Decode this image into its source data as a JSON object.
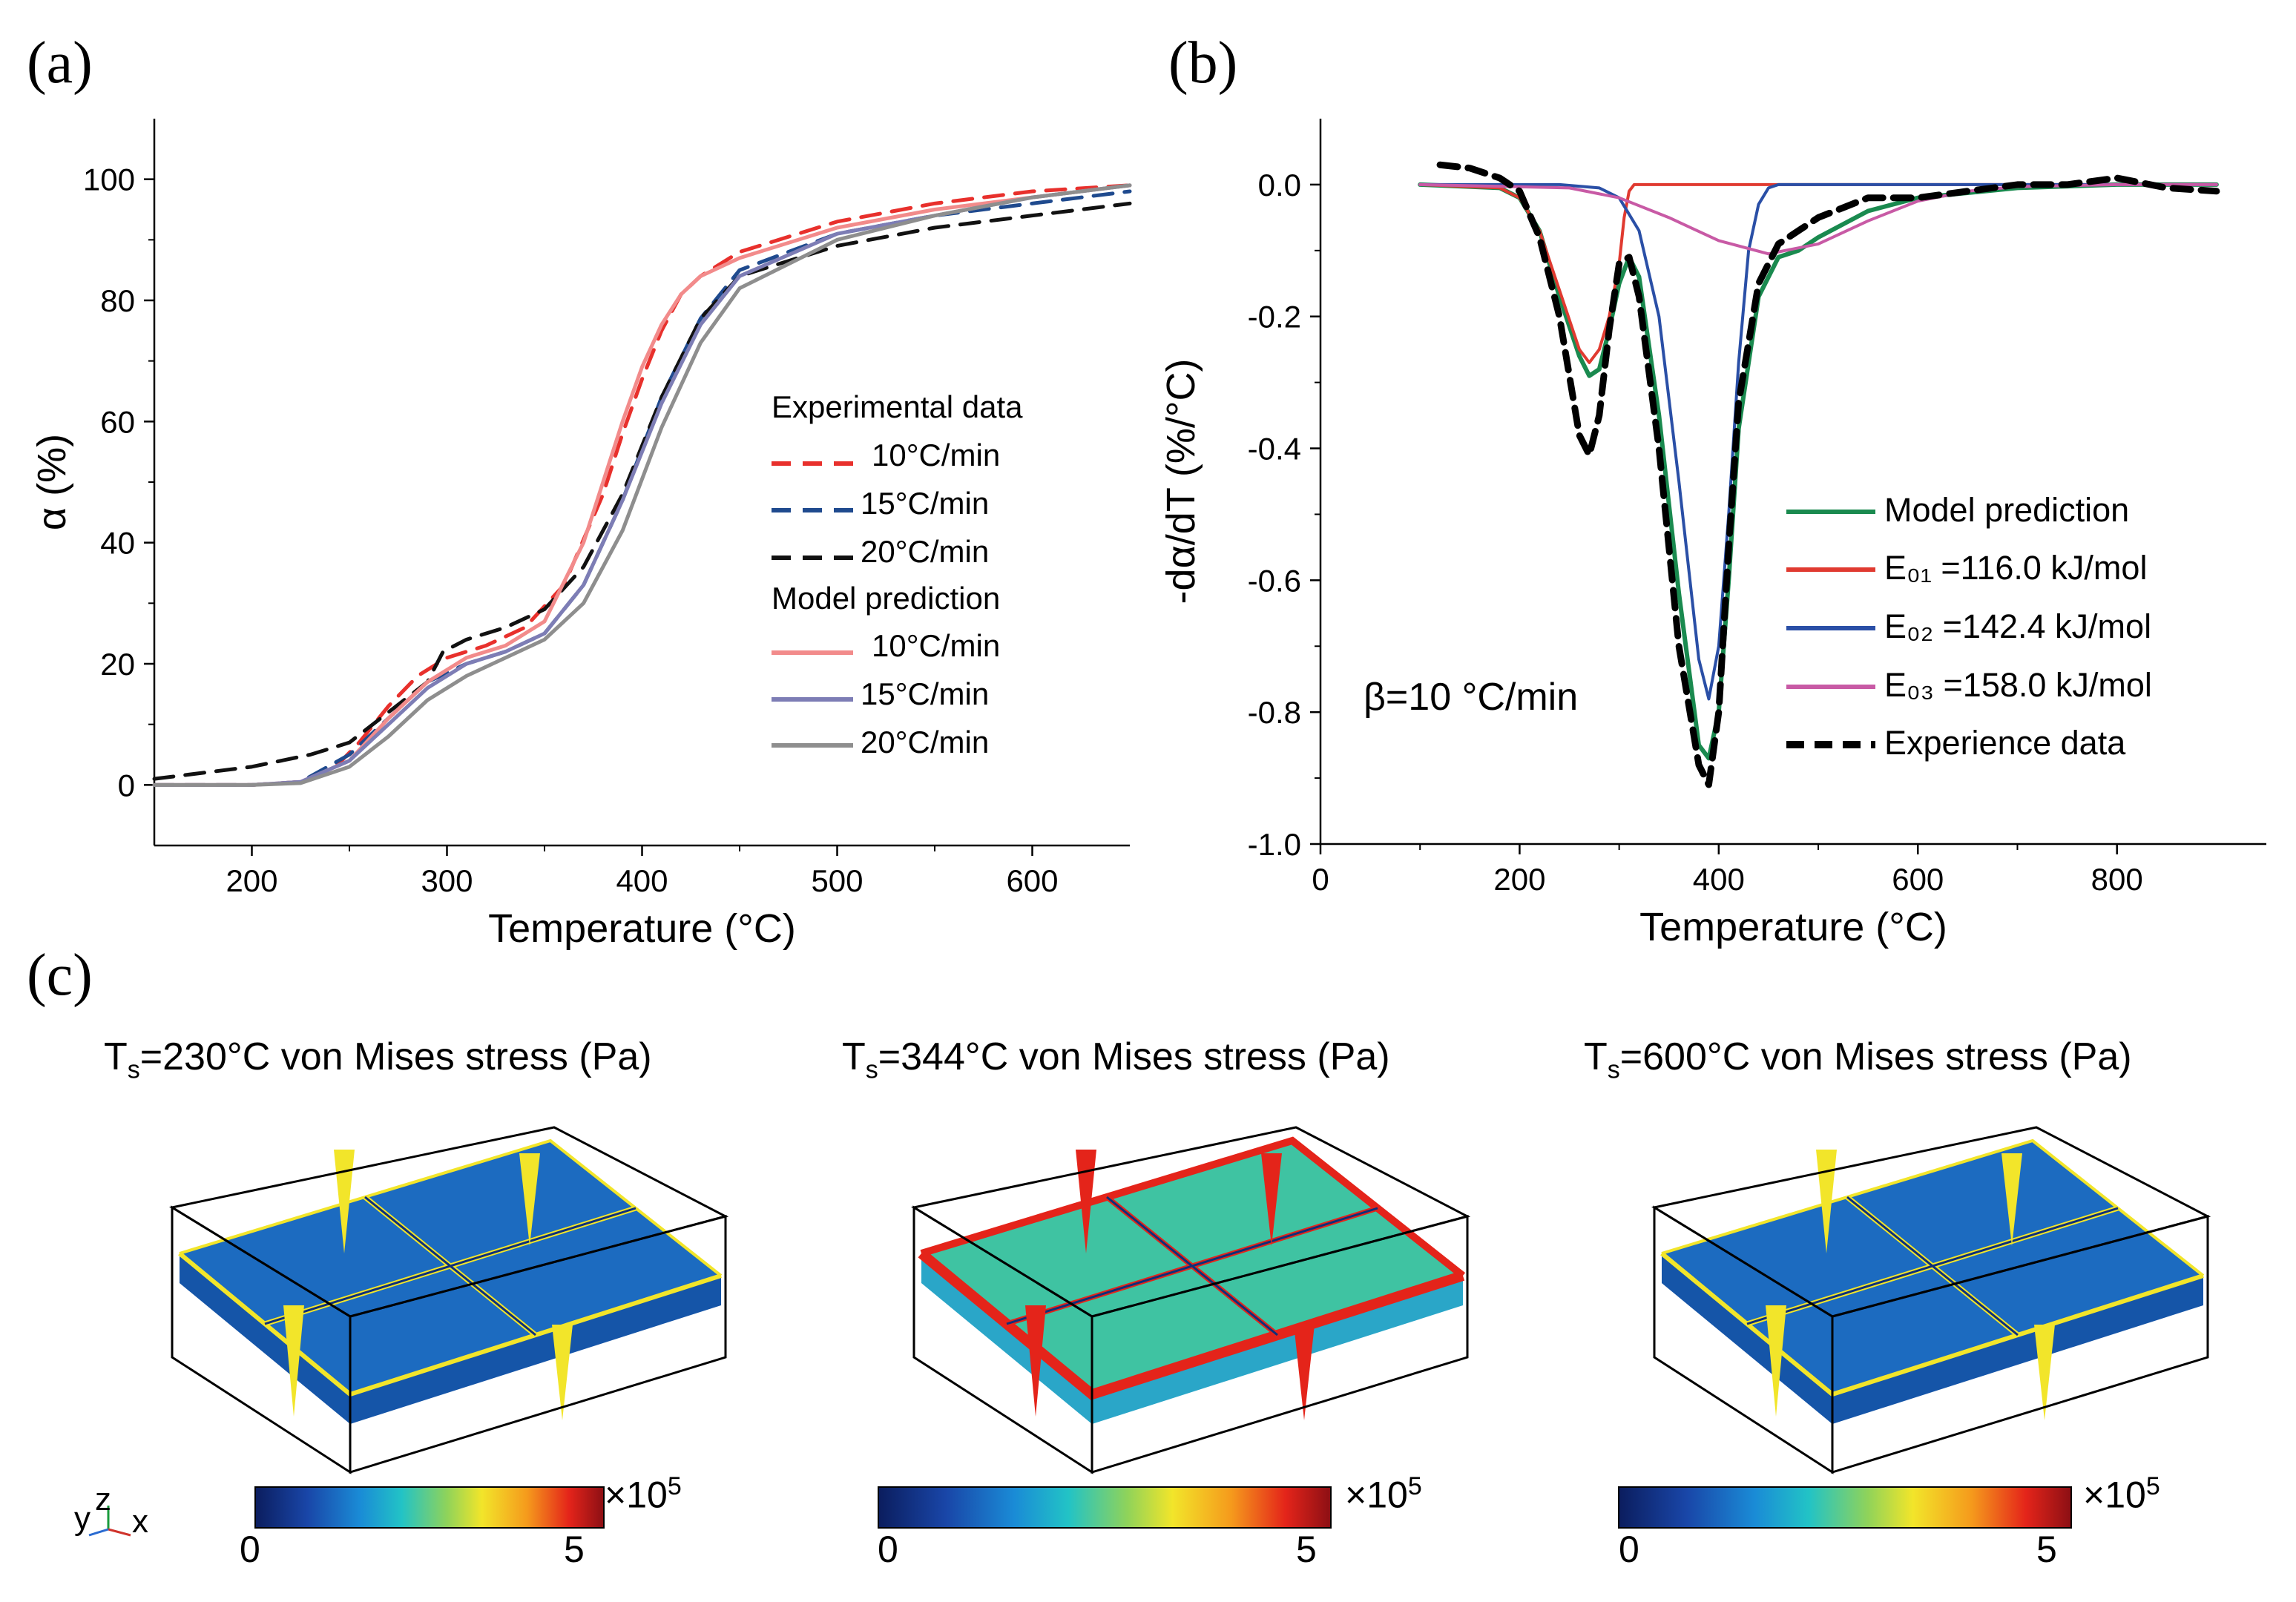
{
  "panels": {
    "a": "(a)",
    "b": "(b)",
    "c": "(c)"
  },
  "colors": {
    "exp_10": "#e8302c",
    "exp_15": "#1f4a8e",
    "exp_20": "#111111",
    "mod_10": "#f28b8b",
    "mod_15": "#7d7db5",
    "mod_20": "#8e8e8e",
    "b_model": "#1a8a4f",
    "b_e01": "#e03a30",
    "b_e02": "#2a4fa6",
    "b_e03": "#c85aa5",
    "b_exp": "#000000"
  },
  "chart_data": [
    {
      "id": "a",
      "type": "line",
      "xlabel": "Temperature (°C)",
      "ylabel": "α (%)",
      "xlim": [
        150,
        650
      ],
      "ylim": [
        -10,
        110
      ],
      "xticks": [
        200,
        300,
        400,
        500,
        600
      ],
      "yticks": [
        0,
        20,
        40,
        60,
        80,
        100
      ],
      "legend": {
        "position": "right",
        "group1_title": "Experimental data",
        "group2_title": "Model prediction",
        "entries": [
          {
            "label": "10°C/min",
            "series": 0
          },
          {
            "label": "15°C/min",
            "series": 1
          },
          {
            "label": "20°C/min",
            "series": 2
          },
          {
            "label": "10°C/min",
            "series": 3
          },
          {
            "label": "15°C/min",
            "series": 4
          },
          {
            "label": "20°C/min",
            "series": 5
          }
        ]
      },
      "series": [
        {
          "name": "Experimental 10°C/min",
          "color_key": "exp_10",
          "dash": true,
          "x": [
            150,
            200,
            225,
            240,
            255,
            270,
            285,
            300,
            320,
            340,
            360,
            380,
            390,
            400,
            410,
            420,
            430,
            450,
            500,
            550,
            600,
            650
          ],
          "y": [
            0,
            0,
            0.5,
            2,
            7,
            13,
            18,
            21,
            23,
            26,
            33,
            48,
            58,
            67,
            75,
            81,
            84,
            88,
            93,
            96,
            98,
            99
          ]
        },
        {
          "name": "Experimental 15°C/min",
          "color_key": "exp_15",
          "dash": true,
          "x": [
            150,
            200,
            225,
            250,
            270,
            290,
            310,
            330,
            350,
            370,
            390,
            410,
            430,
            450,
            500,
            550,
            600,
            650
          ],
          "y": [
            0,
            0,
            0.5,
            5,
            11,
            17,
            20,
            22,
            25,
            33,
            47,
            64,
            77,
            85,
            91,
            94,
            96,
            98
          ]
        },
        {
          "name": "Experimental 20°C/min",
          "color_key": "exp_20",
          "dash": true,
          "x": [
            150,
            200,
            230,
            250,
            270,
            290,
            298,
            310,
            330,
            350,
            370,
            390,
            410,
            430,
            450,
            500,
            550,
            600,
            650
          ],
          "y": [
            1,
            3,
            5,
            7,
            12,
            17,
            22,
            24,
            26,
            29,
            36,
            48,
            64,
            77,
            84,
            89,
            92,
            94,
            96
          ]
        },
        {
          "name": "Model 10°C/min",
          "color_key": "mod_10",
          "dash": false,
          "x": [
            150,
            200,
            225,
            250,
            270,
            290,
            310,
            330,
            350,
            370,
            380,
            390,
            400,
            410,
            420,
            430,
            450,
            500,
            550,
            600,
            650
          ],
          "y": [
            0,
            0,
            0.5,
            4,
            11,
            17,
            21,
            23,
            27,
            40,
            50,
            60,
            69,
            76,
            81,
            84,
            87,
            92,
            95,
            97,
            99
          ]
        },
        {
          "name": "Model 15°C/min",
          "color_key": "mod_15",
          "dash": false,
          "x": [
            150,
            200,
            225,
            250,
            270,
            290,
            310,
            330,
            350,
            370,
            390,
            410,
            430,
            450,
            500,
            550,
            600,
            650
          ],
          "y": [
            0,
            0,
            0.5,
            4,
            10,
            16,
            20,
            22,
            25,
            33,
            47,
            63,
            76,
            84,
            91,
            94,
            97,
            99
          ]
        },
        {
          "name": "Model 20°C/min",
          "color_key": "mod_20",
          "dash": false,
          "x": [
            150,
            200,
            225,
            250,
            270,
            290,
            310,
            330,
            350,
            370,
            390,
            410,
            430,
            450,
            500,
            550,
            600,
            650
          ],
          "y": [
            0,
            0,
            0.3,
            3,
            8,
            14,
            18,
            21,
            24,
            30,
            42,
            59,
            73,
            82,
            90,
            94,
            97,
            99
          ]
        }
      ]
    },
    {
      "id": "b",
      "type": "line",
      "xlabel": "Temperature (°C)",
      "ylabel": "-dα/dT (%/°C)",
      "xlim": [
        0,
        950
      ],
      "ylim": [
        -1.0,
        0.1
      ],
      "xticks": [
        0,
        200,
        400,
        600,
        800
      ],
      "yticks": [
        0.0,
        -0.2,
        -0.4,
        -0.6,
        -0.8,
        -1.0
      ],
      "annotation": "β=10 °C/min",
      "legend": {
        "position": "bottom-right",
        "entries": [
          {
            "label": "Model prediction",
            "series": 0
          },
          {
            "label": "E₀₁ =116.0  kJ/mol",
            "series": 1
          },
          {
            "label": "E₀₂ =142.4  kJ/mol",
            "series": 2
          },
          {
            "label": "E₀₃ =158.0  kJ/mol",
            "series": 3
          },
          {
            "label": "Experience data",
            "series": 4
          }
        ]
      },
      "series": [
        {
          "name": "Model prediction",
          "color_key": "b_model",
          "dash": false,
          "x": [
            100,
            180,
            200,
            220,
            240,
            260,
            270,
            280,
            290,
            300,
            310,
            320,
            340,
            360,
            380,
            390,
            400,
            410,
            420,
            440,
            460,
            480,
            500,
            550,
            600,
            700,
            800,
            900
          ],
          "y": [
            0,
            -0.005,
            -0.02,
            -0.07,
            -0.17,
            -0.26,
            -0.29,
            -0.28,
            -0.22,
            -0.15,
            -0.11,
            -0.14,
            -0.35,
            -0.62,
            -0.85,
            -0.87,
            -0.8,
            -0.6,
            -0.37,
            -0.17,
            -0.11,
            -0.1,
            -0.08,
            -0.04,
            -0.02,
            -0.005,
            0,
            0
          ]
        },
        {
          "name": "E01",
          "color_key": "b_e01",
          "dash": false,
          "x": [
            100,
            180,
            200,
            220,
            240,
            260,
            270,
            280,
            290,
            300,
            305,
            310,
            315,
            330,
            400,
            600,
            900
          ],
          "y": [
            0,
            -0.005,
            -0.02,
            -0.07,
            -0.16,
            -0.25,
            -0.27,
            -0.25,
            -0.2,
            -0.12,
            -0.05,
            -0.01,
            0,
            0,
            0,
            0,
            0
          ]
        },
        {
          "name": "E02",
          "color_key": "b_e02",
          "dash": false,
          "x": [
            100,
            240,
            280,
            300,
            320,
            340,
            360,
            380,
            390,
            400,
            410,
            420,
            430,
            440,
            450,
            460,
            480,
            600,
            900
          ],
          "y": [
            0,
            0,
            -0.005,
            -0.02,
            -0.07,
            -0.2,
            -0.45,
            -0.72,
            -0.78,
            -0.7,
            -0.5,
            -0.27,
            -0.1,
            -0.03,
            -0.005,
            0,
            0,
            0,
            0
          ]
        },
        {
          "name": "E03",
          "color_key": "b_e03",
          "dash": false,
          "x": [
            100,
            250,
            300,
            350,
            400,
            450,
            500,
            550,
            600,
            650,
            700,
            800,
            900
          ],
          "y": [
            0,
            -0.005,
            -0.02,
            -0.05,
            -0.085,
            -0.105,
            -0.09,
            -0.055,
            -0.025,
            -0.01,
            -0.003,
            0,
            0
          ]
        },
        {
          "name": "Experience data",
          "color_key": "b_exp",
          "dash": true,
          "x": [
            120,
            150,
            180,
            200,
            220,
            240,
            260,
            270,
            280,
            290,
            300,
            310,
            320,
            340,
            360,
            380,
            390,
            400,
            410,
            420,
            440,
            460,
            480,
            500,
            550,
            600,
            650,
            700,
            750,
            800,
            850,
            900
          ],
          "y": [
            0.03,
            0.025,
            0.01,
            -0.01,
            -0.08,
            -0.2,
            -0.38,
            -0.41,
            -0.35,
            -0.22,
            -0.12,
            -0.11,
            -0.17,
            -0.4,
            -0.7,
            -0.88,
            -0.91,
            -0.8,
            -0.55,
            -0.33,
            -0.15,
            -0.09,
            -0.07,
            -0.05,
            -0.02,
            -0.02,
            -0.01,
            0,
            0,
            0.01,
            -0.005,
            -0.01
          ]
        }
      ]
    }
  ],
  "panel_c": {
    "sims": [
      {
        "title": "T",
        "subscript": "s",
        "rest": "=230°C von Mises stress (Pa)",
        "level": "low"
      },
      {
        "title": "T",
        "subscript": "s",
        "rest": "=344°C von Mises stress (Pa)",
        "level": "high"
      },
      {
        "title": "T",
        "subscript": "s",
        "rest": "=600°C von Mises stress (Pa)",
        "level": "low"
      }
    ],
    "colorbar": {
      "min_label": "0",
      "max_label": "5",
      "multiplier": "×10",
      "exponent": "5",
      "min": 0,
      "max": 5
    },
    "triad": {
      "y": "y",
      "z": "z",
      "x": "x"
    }
  }
}
